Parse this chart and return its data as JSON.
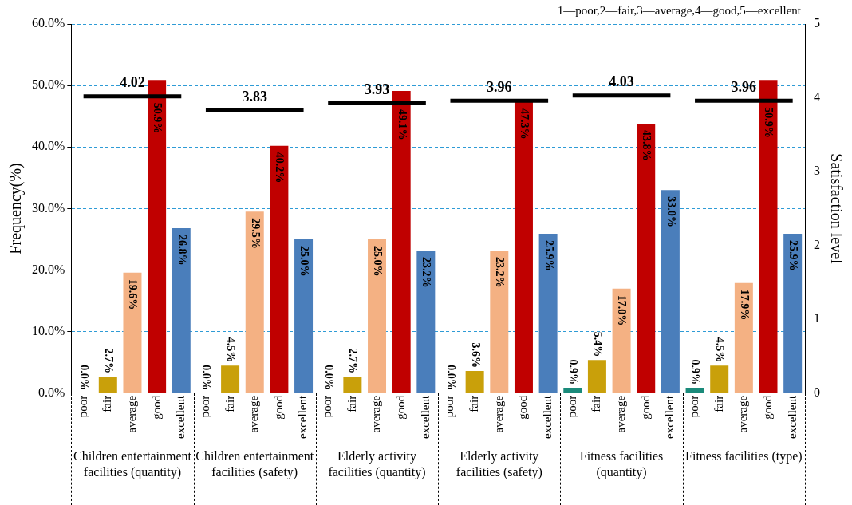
{
  "chart_data": {
    "type": "bar",
    "ylabel": "Frequency(%)",
    "y2label": "Satisfaction level",
    "categories": [
      "poor",
      "fair",
      "average",
      "good",
      "excellent",
      "poor",
      "fair",
      "average",
      "good",
      "excellent",
      "poor",
      "fair",
      "average",
      "good",
      "excellent",
      "poor",
      "fair",
      "average",
      "good",
      "excellent",
      "poor",
      "fair",
      "average",
      "good",
      "excellent",
      "poor",
      "fair",
      "average",
      "good",
      "excellent"
    ],
    "series": [
      {
        "colors": [
          "#1a8a7a",
          "#c9a00a",
          "#f4b183",
          "#c00000",
          "#4a7ebb",
          "#1a8a7a",
          "#c9a00a",
          "#f4b183",
          "#c00000",
          "#4a7ebb",
          "#1a8a7a",
          "#c9a00a",
          "#f4b183",
          "#c00000",
          "#4a7ebb",
          "#1a8a7a",
          "#c9a00a",
          "#f4b183",
          "#c00000",
          "#4a7ebb",
          "#1a8a7a",
          "#c9a00a",
          "#f4b183",
          "#c00000",
          "#4a7ebb",
          "#1a8a7a",
          "#c9a00a",
          "#f4b183",
          "#c00000",
          "#4a7ebb"
        ],
        "values": [
          0.0,
          2.7,
          19.6,
          50.9,
          26.8,
          0.0,
          4.5,
          29.5,
          40.2,
          25.0,
          0.0,
          2.7,
          25.0,
          49.1,
          23.2,
          0.0,
          3.6,
          23.2,
          47.3,
          25.9,
          0.9,
          5.4,
          17.0,
          43.8,
          33.0,
          0.9,
          4.5,
          17.9,
          50.9,
          25.9
        ],
        "value_labels": [
          "0.0%",
          "2.7%",
          "19.6%",
          "50.9%",
          "26.8%",
          "0.0%",
          "4.5%",
          "29.5%",
          "40.2%",
          "25.0%",
          "0.0%",
          "2.7%",
          "25.0%",
          "49.1%",
          "23.2%",
          "0.0%",
          "3.6%",
          "23.2%",
          "47.3%",
          "25.9%",
          "0.9%",
          "5.4%",
          "17.0%",
          "43.8%",
          "33.0%",
          "0.9%",
          "4.5%",
          "17.9%",
          "50.9%",
          "25.9%"
        ]
      },
      {
        "type": "line",
        "axis": "y2",
        "color": "#000000",
        "values": [
          4.02,
          4.02,
          4.02,
          4.02,
          4.02,
          3.83,
          3.83,
          3.83,
          3.83,
          3.83,
          3.93,
          3.93,
          3.93,
          3.93,
          3.93,
          3.96,
          3.96,
          3.96,
          3.96,
          3.96,
          4.03,
          4.03,
          4.03,
          4.03,
          4.03,
          3.96,
          3.96,
          3.96,
          3.96,
          3.96
        ],
        "value_labels": [
          null,
          null,
          "4.02",
          null,
          null,
          null,
          null,
          "3.83",
          null,
          null,
          null,
          null,
          "3.93",
          null,
          null,
          null,
          null,
          "3.96",
          null,
          null,
          null,
          null,
          "4.03",
          null,
          null,
          null,
          null,
          "3.96",
          null,
          null
        ]
      }
    ],
    "ylim": [
      0,
      60
    ],
    "yticks": [
      {
        "value": 0,
        "label": "0.0%"
      },
      {
        "value": 10,
        "label": "10.0%"
      },
      {
        "value": 20,
        "label": "20.0%"
      },
      {
        "value": 30,
        "label": "30.0%"
      },
      {
        "value": 40,
        "label": "40.0%"
      },
      {
        "value": 50,
        "label": "50.0%"
      },
      {
        "value": 60,
        "label": "60.0%"
      }
    ],
    "y2lim": [
      0,
      5
    ],
    "y2ticks": [
      0,
      1,
      2,
      3,
      4,
      5
    ],
    "grid": "y",
    "annotations": [
      "1—poor,2—fair,3—average,4—good,5—excellent",
      "Children entertainment facilities (quantity)",
      "Children entertainment facilities (safety)",
      "Elderly activity facilities (quantity)",
      "Elderly activity facilities (safety)",
      "Fitness facilities (quantity)",
      "Fitness facilities (type)"
    ]
  }
}
